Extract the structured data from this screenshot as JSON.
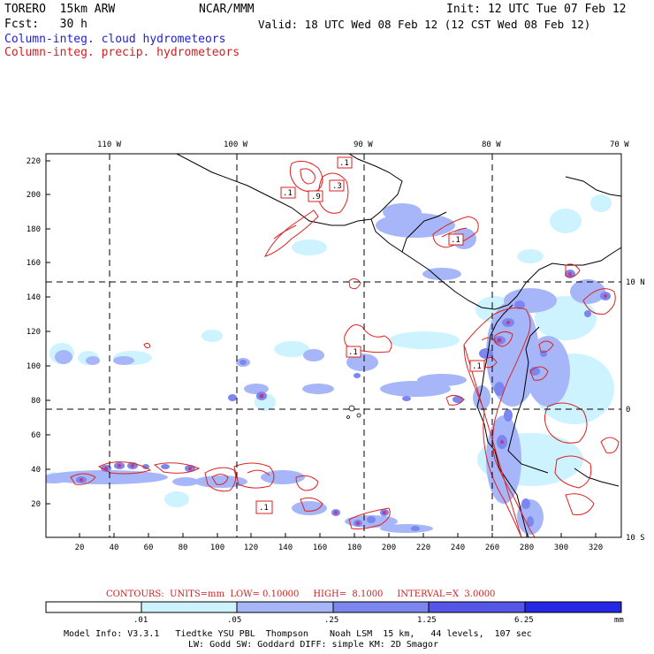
{
  "header": {
    "model": "TORERO  15km ARW",
    "center": "NCAR/MMM",
    "init": "Init: 12 UTC Tue 07 Feb 12",
    "fcst": "Fcst:   30 h",
    "valid": "Valid: 18 UTC Wed 08 Feb 12 (12 CST Wed 08 Feb 12)",
    "legend_cloud": "Column-integ. cloud hydrometeors",
    "legend_precip": "Column-integ. precip. hydrometeors"
  },
  "map": {
    "top_lon_labels": [
      "110 W",
      "100 W",
      "90 W",
      "80 W",
      "70 W"
    ],
    "right_lat_labels": [
      "10 N",
      "0",
      "10 S"
    ],
    "y_ticks": [
      "220",
      "200",
      "180",
      "160",
      "140",
      "120",
      "100",
      "80",
      "60",
      "40",
      "20"
    ],
    "x_ticks": [
      "20",
      "40",
      "60",
      "80",
      "100",
      "120",
      "140",
      "160",
      "180",
      "200",
      "220",
      "240",
      "260",
      "280",
      "300",
      "320"
    ],
    "contour_labels": [
      ".1",
      ".9",
      ".3",
      ".1",
      ".1",
      ".1",
      ".1",
      ".1"
    ]
  },
  "contours_line": {
    "prefix": "CONTOURS:",
    "units": "UNITS=mm",
    "low": "LOW= 0.10000",
    "high": "HIGH=  8.1000",
    "interval": "INTERVAL=X  3.0000"
  },
  "colorbar": {
    "labels": [
      ".01",
      ".05",
      ".25",
      "1.25",
      "6.25"
    ],
    "unit": "mm",
    "colors": [
      "#ffffff",
      "#ccf3ff",
      "#a6b6f8",
      "#7c86ef",
      "#5555e8",
      "#2626e6"
    ]
  },
  "footer": {
    "line1": "Model Info: V3.3.1   Tiedtke YSU PBL  Thompson    Noah LSM  15 km,   44 levels,  107 sec",
    "line2": "LW: Godd SW: Goddard DIFF: simple KM: 2D Smagor"
  }
}
